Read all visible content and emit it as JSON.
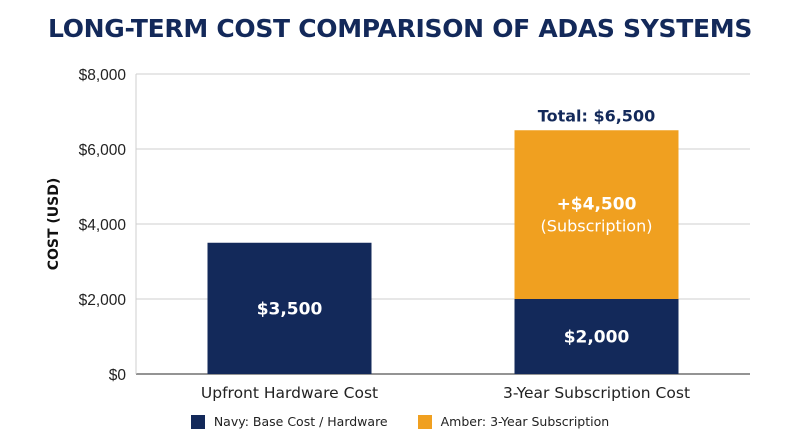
{
  "chart_data": {
    "type": "bar",
    "stacked": true,
    "title": "LONG-TERM COST COMPARISON OF ADAS SYSTEMS",
    "xlabel": "",
    "ylabel": "COST (USD)",
    "ylim": [
      0,
      8000
    ],
    "yticks": [
      0,
      2000,
      4000,
      6000,
      8000
    ],
    "ytick_labels": [
      "$0",
      "$2,000",
      "$4,000",
      "$6,000",
      "$8,000"
    ],
    "grid": true,
    "legend_position": "bottom",
    "categories": [
      "Upfront Hardware Cost",
      "3-Year Subscription Cost"
    ],
    "series": [
      {
        "name": "Navy: Base Cost / Hardware",
        "color": "#13295a",
        "values": [
          3500,
          2000
        ],
        "labels": [
          [
            "$3,500"
          ],
          [
            "$2,000"
          ]
        ]
      },
      {
        "name": "Amber: 3-Year Subscription",
        "color": "#f0a020",
        "values": [
          0,
          4500
        ],
        "labels": [
          [],
          [
            "+$4,500",
            "(Subscription)"
          ]
        ]
      }
    ],
    "annotations": [
      {
        "category": "3-Year Subscription Cost",
        "value": 6500,
        "text": "Total: $6,500"
      }
    ]
  }
}
